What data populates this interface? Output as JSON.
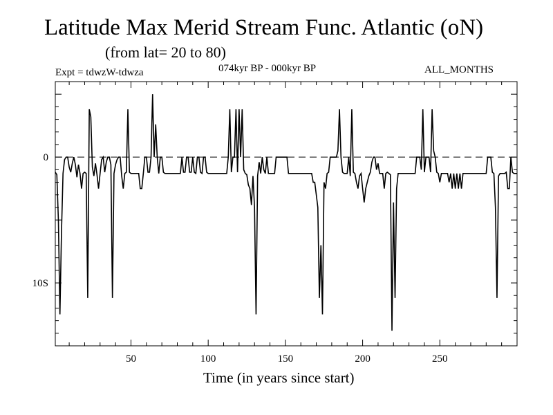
{
  "chart_data": {
    "type": "line",
    "title": "Latitude Max Merid Stream Func. Atlantic (oN)",
    "subtitle": "(from lat= 20 to 80)",
    "annotations": {
      "experiment": "Expt = tdwzW-tdwza",
      "period": "074kyr BP - 000kyr BP",
      "months": "ALL_MONTHS"
    },
    "xlabel": "Time (in years since start)",
    "ylabel": "",
    "xlim": [
      1,
      300
    ],
    "ylim": [
      -15,
      6
    ],
    "x_ticks": [
      {
        "value": 50,
        "label": "50"
      },
      {
        "value": 100,
        "label": "100"
      },
      {
        "value": 150,
        "label": "150"
      },
      {
        "value": 200,
        "label": "200"
      },
      {
        "value": 250,
        "label": "250"
      }
    ],
    "y_ticks": [
      {
        "value": 0,
        "label": "0"
      },
      {
        "value": -10,
        "label": "10S"
      }
    ],
    "reference_line": {
      "y": 0,
      "style": "dashed"
    },
    "grid": false,
    "colors": {
      "line": "#000000",
      "axis": "#000000"
    },
    "series": [
      {
        "points": [
          [
            1,
            -1.2
          ],
          [
            2,
            -1.4
          ],
          [
            3,
            -5
          ],
          [
            4,
            -12.5
          ],
          [
            5,
            -6
          ],
          [
            6,
            -1.3
          ],
          [
            7,
            -0.2
          ],
          [
            8,
            0
          ],
          [
            9,
            0
          ],
          [
            10,
            -0.8
          ],
          [
            11,
            -1.2
          ],
          [
            12,
            -0.5
          ],
          [
            13,
            0
          ],
          [
            14,
            -0.6
          ],
          [
            15,
            -1.6
          ],
          [
            16,
            -0.6
          ],
          [
            17,
            -1.3
          ],
          [
            18,
            -2.5
          ],
          [
            19,
            -1.3
          ],
          [
            20,
            -1.2
          ],
          [
            21,
            -1.3
          ],
          [
            22,
            -11.2
          ],
          [
            23,
            3.8
          ],
          [
            24,
            3.2
          ],
          [
            25,
            -0.8
          ],
          [
            26,
            -1.5
          ],
          [
            27,
            -0.5
          ],
          [
            28,
            -1.4
          ],
          [
            29,
            -2.5
          ],
          [
            30,
            -1.3
          ],
          [
            31,
            -0.2
          ],
          [
            32,
            0
          ],
          [
            33,
            -1.2
          ],
          [
            34,
            -0.4
          ],
          [
            35,
            0
          ],
          [
            36,
            0
          ],
          [
            37,
            -0.6
          ],
          [
            38,
            -11.2
          ],
          [
            39,
            -1.3
          ],
          [
            40,
            -0.6
          ],
          [
            41,
            -0.2
          ],
          [
            42,
            0
          ],
          [
            43,
            0
          ],
          [
            44,
            -1.5
          ],
          [
            45,
            -2.5
          ],
          [
            46,
            -1.3
          ],
          [
            47,
            -1.2
          ],
          [
            48,
            3.8
          ],
          [
            49,
            -1.2
          ],
          [
            50,
            -1.3
          ],
          [
            51,
            -1.3
          ],
          [
            52,
            -1.3
          ],
          [
            53,
            -1.3
          ],
          [
            54,
            -1.3
          ],
          [
            55,
            -1.3
          ],
          [
            56,
            -2.5
          ],
          [
            57,
            -2.5
          ],
          [
            58,
            -1.3
          ],
          [
            59,
            0
          ],
          [
            60,
            0
          ],
          [
            61,
            -1.2
          ],
          [
            62,
            -1.2
          ],
          [
            63,
            0
          ],
          [
            64,
            5
          ],
          [
            65,
            0
          ],
          [
            66,
            2.6
          ],
          [
            67,
            0
          ],
          [
            68,
            -1.3
          ],
          [
            69,
            0
          ],
          [
            70,
            0
          ],
          [
            71,
            -1.2
          ],
          [
            72,
            -1.3
          ],
          [
            73,
            -1.3
          ],
          [
            74,
            -1.3
          ],
          [
            75,
            -1.3
          ],
          [
            76,
            -1.3
          ],
          [
            77,
            -1.3
          ],
          [
            78,
            -1.3
          ],
          [
            79,
            -1.3
          ],
          [
            80,
            -1.3
          ],
          [
            81,
            -1.3
          ],
          [
            82,
            -1.3
          ],
          [
            83,
            0
          ],
          [
            84,
            -1.2
          ],
          [
            85,
            -1.2
          ],
          [
            86,
            0
          ],
          [
            87,
            0
          ],
          [
            88,
            -1.2
          ],
          [
            89,
            -1.2
          ],
          [
            90,
            0
          ],
          [
            91,
            -1.2
          ],
          [
            92,
            -1.3
          ],
          [
            93,
            0
          ],
          [
            94,
            0
          ],
          [
            95,
            -1.2
          ],
          [
            96,
            -1.3
          ],
          [
            97,
            0
          ],
          [
            98,
            0
          ],
          [
            99,
            -1.2
          ],
          [
            100,
            -1.3
          ],
          [
            101,
            -1.3
          ],
          [
            102,
            -1.3
          ],
          [
            103,
            -1.3
          ],
          [
            104,
            -1.3
          ],
          [
            105,
            -1.3
          ],
          [
            106,
            -1.3
          ],
          [
            107,
            -1.3
          ],
          [
            108,
            -1.3
          ],
          [
            109,
            -1.3
          ],
          [
            110,
            -1.3
          ],
          [
            111,
            -1.3
          ],
          [
            112,
            -1.3
          ],
          [
            113,
            0
          ],
          [
            114,
            3.8
          ],
          [
            115,
            -1.2
          ],
          [
            116,
            0
          ],
          [
            117,
            0
          ],
          [
            118,
            3.8
          ],
          [
            119,
            -1.2
          ],
          [
            120,
            3.8
          ],
          [
            121,
            0
          ],
          [
            122,
            3.8
          ],
          [
            123,
            -1
          ],
          [
            124,
            -1.3
          ],
          [
            125,
            -1.4
          ],
          [
            126,
            -2.2
          ],
          [
            127,
            -2.5
          ],
          [
            128,
            -3.8
          ],
          [
            129,
            -1.5
          ],
          [
            130,
            -4
          ],
          [
            131,
            -12.5
          ],
          [
            132,
            -1.5
          ],
          [
            133,
            -0.4
          ],
          [
            134,
            -1.3
          ],
          [
            135,
            0
          ],
          [
            136,
            -1
          ],
          [
            137,
            -1.3
          ],
          [
            138,
            0
          ],
          [
            139,
            -1.3
          ],
          [
            140,
            -1.3
          ],
          [
            141,
            -1.3
          ],
          [
            142,
            -1.3
          ],
          [
            143,
            -1.3
          ],
          [
            144,
            0
          ],
          [
            145,
            0
          ],
          [
            146,
            0
          ],
          [
            147,
            0
          ],
          [
            148,
            0
          ],
          [
            149,
            0
          ],
          [
            150,
            0
          ],
          [
            151,
            0
          ],
          [
            152,
            -1.3
          ],
          [
            153,
            -1.3
          ],
          [
            154,
            -1.3
          ],
          [
            155,
            -1.3
          ],
          [
            156,
            -1.3
          ],
          [
            157,
            -1.3
          ],
          [
            158,
            -1.3
          ],
          [
            159,
            -1.3
          ],
          [
            160,
            -1.3
          ],
          [
            161,
            -1.3
          ],
          [
            162,
            -1.3
          ],
          [
            163,
            -1.3
          ],
          [
            164,
            -1.3
          ],
          [
            165,
            -1.3
          ],
          [
            166,
            -1.3
          ],
          [
            167,
            -1.3
          ],
          [
            168,
            -2
          ],
          [
            169,
            -2
          ],
          [
            170,
            -3
          ],
          [
            171,
            -4
          ],
          [
            172,
            -11.2
          ],
          [
            173,
            -7
          ],
          [
            174,
            -12.5
          ],
          [
            175,
            -2
          ],
          [
            176,
            -2.5
          ],
          [
            177,
            -1.3
          ],
          [
            178,
            -1.2
          ],
          [
            179,
            0
          ],
          [
            180,
            0
          ],
          [
            181,
            0
          ],
          [
            182,
            0
          ],
          [
            183,
            0
          ],
          [
            184,
            0.5
          ],
          [
            185,
            3.8
          ],
          [
            186,
            0
          ],
          [
            187,
            -1.2
          ],
          [
            188,
            -1.3
          ],
          [
            189,
            -1.3
          ],
          [
            190,
            -1.3
          ],
          [
            191,
            0
          ],
          [
            192,
            -1.5
          ],
          [
            193,
            3.8
          ],
          [
            194,
            -1.2
          ],
          [
            195,
            -1.3
          ],
          [
            196,
            -2
          ],
          [
            197,
            -2.5
          ],
          [
            198,
            -1.5
          ],
          [
            199,
            -1.3
          ],
          [
            200,
            -2.5
          ],
          [
            201,
            -3.6
          ],
          [
            202,
            -2.5
          ],
          [
            203,
            -2
          ],
          [
            204,
            -1.5
          ],
          [
            205,
            -1.2
          ],
          [
            206,
            -0.4
          ],
          [
            207,
            0
          ],
          [
            208,
            0
          ],
          [
            209,
            -1
          ],
          [
            210,
            -0.5
          ],
          [
            211,
            -1.3
          ],
          [
            212,
            -1.3
          ],
          [
            213,
            -1.3
          ],
          [
            214,
            -2.5
          ],
          [
            215,
            -1.3
          ],
          [
            216,
            -1.2
          ],
          [
            217,
            -1.3
          ],
          [
            218,
            -1.4
          ],
          [
            219,
            -13.8
          ],
          [
            220,
            -3.6
          ],
          [
            221,
            -11.2
          ],
          [
            222,
            -2.5
          ],
          [
            223,
            -1.3
          ],
          [
            224,
            -1.3
          ],
          [
            225,
            -1.3
          ],
          [
            226,
            -1.3
          ],
          [
            227,
            -1.3
          ],
          [
            228,
            -1.3
          ],
          [
            229,
            -1.3
          ],
          [
            230,
            -1.3
          ],
          [
            231,
            -1.3
          ],
          [
            232,
            -1.3
          ],
          [
            233,
            -1.3
          ],
          [
            234,
            -1.3
          ],
          [
            235,
            0
          ],
          [
            236,
            0
          ],
          [
            237,
            0
          ],
          [
            238,
            -1
          ],
          [
            239,
            3.8
          ],
          [
            240,
            -1.2
          ],
          [
            241,
            0
          ],
          [
            242,
            0
          ],
          [
            243,
            0
          ],
          [
            244,
            -1.2
          ],
          [
            245,
            3.8
          ],
          [
            246,
            0.5
          ],
          [
            247,
            0
          ],
          [
            248,
            -1.2
          ],
          [
            249,
            -1.3
          ],
          [
            250,
            -2
          ],
          [
            251,
            -1.3
          ],
          [
            252,
            -1.3
          ],
          [
            253,
            -1.3
          ],
          [
            254,
            -1.3
          ],
          [
            255,
            -1.3
          ],
          [
            256,
            -2
          ],
          [
            257,
            -1.3
          ],
          [
            258,
            -2.5
          ],
          [
            259,
            -1.3
          ],
          [
            260,
            -2.5
          ],
          [
            261,
            -1.3
          ],
          [
            262,
            -2.5
          ],
          [
            263,
            -1.3
          ],
          [
            264,
            -2.5
          ],
          [
            265,
            -1.3
          ],
          [
            266,
            -1.3
          ],
          [
            267,
            -1.3
          ],
          [
            268,
            -1.3
          ],
          [
            269,
            -1.3
          ],
          [
            270,
            -1.3
          ],
          [
            271,
            -1.3
          ],
          [
            272,
            -1.3
          ],
          [
            273,
            -1.3
          ],
          [
            274,
            -1.3
          ],
          [
            275,
            -1.3
          ],
          [
            276,
            -1.3
          ],
          [
            277,
            -1.3
          ],
          [
            278,
            -1.3
          ],
          [
            279,
            -1.3
          ],
          [
            280,
            -1.3
          ],
          [
            281,
            0
          ],
          [
            282,
            0
          ],
          [
            283,
            0
          ],
          [
            284,
            -1.2
          ],
          [
            285,
            -1.3
          ],
          [
            286,
            -4
          ],
          [
            287,
            -11.2
          ],
          [
            288,
            -1.5
          ],
          [
            289,
            -1.3
          ],
          [
            290,
            -1.3
          ],
          [
            291,
            -1.3
          ],
          [
            292,
            -1.3
          ],
          [
            293,
            -1.2
          ],
          [
            294,
            -2.5
          ],
          [
            295,
            -2.5
          ],
          [
            296,
            0
          ],
          [
            297,
            -1.2
          ],
          [
            298,
            -1.3
          ],
          [
            299,
            -1.3
          ],
          [
            300,
            -1.3
          ]
        ]
      }
    ]
  }
}
